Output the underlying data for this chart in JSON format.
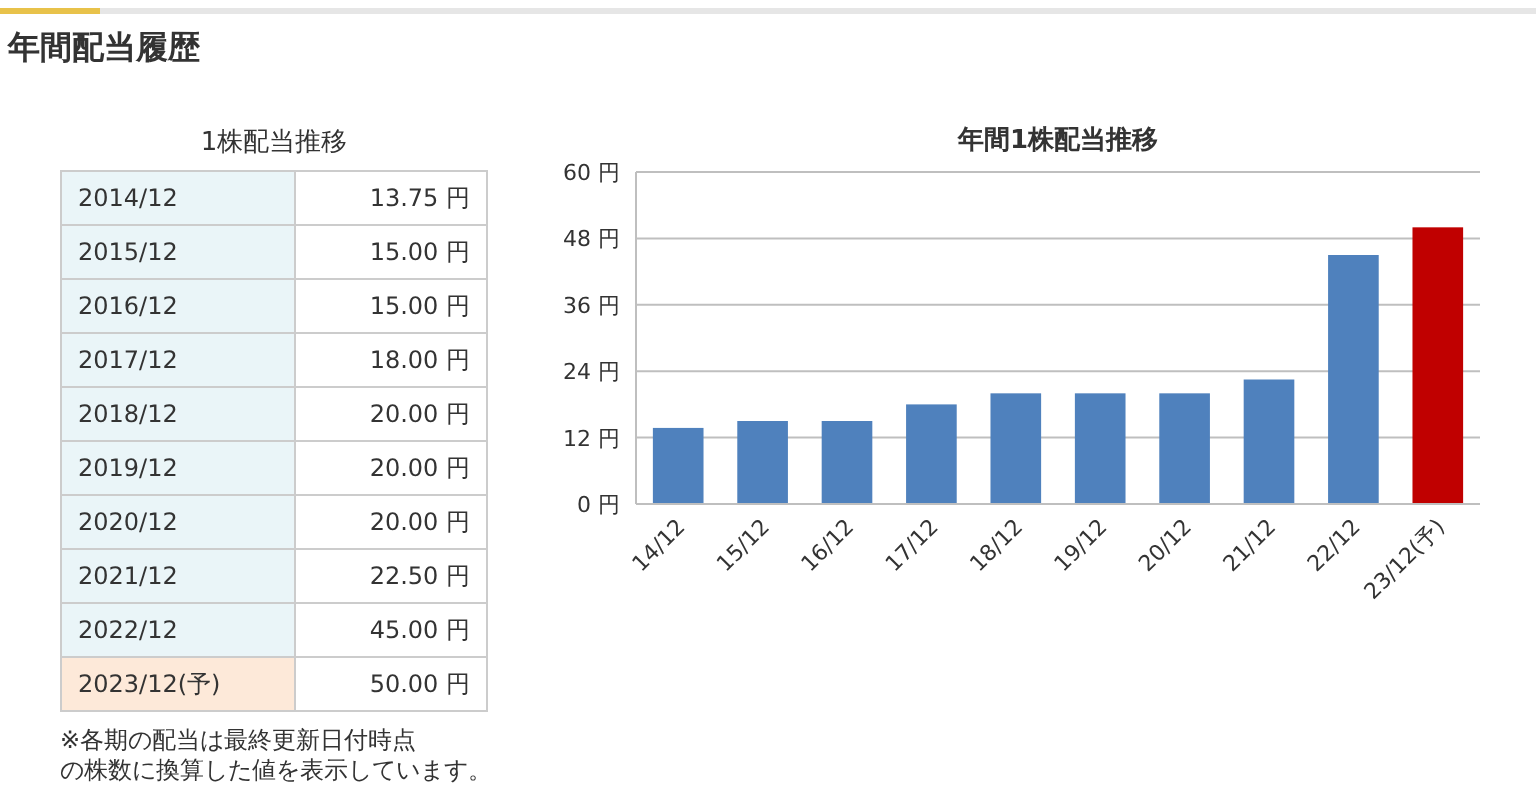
{
  "chart_data": [
    {
      "type": "other",
      "title": "年間配当履歴",
      "subtitle": "1株配当推移",
      "categories": [
        "2014/12",
        "2015/12",
        "2016/12",
        "2017/12",
        "2018/12",
        "2019/12",
        "2020/12",
        "2021/12",
        "2022/12",
        "2023/12(予)"
      ],
      "value_labels": [
        "13.75 円",
        "15.00 円",
        "15.00 円",
        "18.00 円",
        "20.00 円",
        "20.00 円",
        "20.00 円",
        "22.50 円",
        "45.00 円",
        "50.00 円"
      ],
      "annotations": [
        "※各期の配当は最終更新日付時点",
        "の株数に換算した値を表示しています。"
      ]
    },
    {
      "type": "bar",
      "title": "年間1株配当推移",
      "categories": [
        "14/12",
        "15/12",
        "16/12",
        "17/12",
        "18/12",
        "19/12",
        "20/12",
        "21/12",
        "22/12",
        "23/12(予)"
      ],
      "values": [
        13.75,
        15,
        15,
        18,
        20,
        20,
        20,
        22.5,
        45,
        50
      ],
      "colors": [
        "#4f81bd",
        "#4f81bd",
        "#4f81bd",
        "#4f81bd",
        "#4f81bd",
        "#4f81bd",
        "#4f81bd",
        "#4f81bd",
        "#4f81bd",
        "#c00000"
      ],
      "ylim": [
        0,
        60
      ],
      "yticks": [
        {
          "value": 0,
          "label": "0 円"
        },
        {
          "value": 12,
          "label": "12 円"
        },
        {
          "value": 24,
          "label": "24 円"
        },
        {
          "value": 36,
          "label": "36 円"
        },
        {
          "value": 48,
          "label": "48 円"
        },
        {
          "value": 60,
          "label": "60 円"
        }
      ],
      "grid": "y"
    }
  ]
}
